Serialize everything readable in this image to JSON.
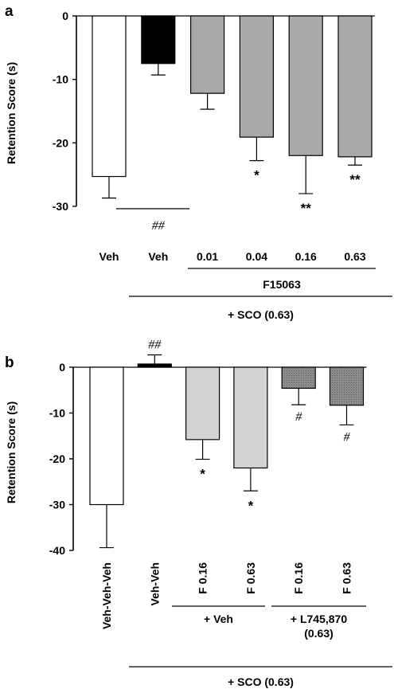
{
  "chart_data": [
    {
      "panel": "a",
      "type": "bar",
      "ylabel": "Retention Score (s)",
      "ylim": [
        -30,
        0
      ],
      "yticks": [
        0,
        -10,
        -20,
        -30
      ],
      "categories": [
        "Veh",
        "Veh",
        "0.01",
        "0.04",
        "0.16",
        "0.63"
      ],
      "values": [
        -25.3,
        -7.5,
        -12.2,
        -19.1,
        -22.0,
        -22.2
      ],
      "errors": [
        3.4,
        1.8,
        2.5,
        3.7,
        6.0,
        1.3
      ],
      "fills": [
        "#ffffff",
        "#000000",
        "#a9a9a9",
        "#a9a9a9",
        "#a9a9a9",
        "#a9a9a9"
      ],
      "sig_marks": [
        "",
        "##",
        "",
        "*",
        "**",
        "**"
      ],
      "group_labels": [
        {
          "text": "F15063",
          "from": 2,
          "to": 5
        },
        {
          "text": "+ SCO (0.63)",
          "from": 1,
          "to": 5
        }
      ],
      "grid": false
    },
    {
      "panel": "b",
      "type": "bar",
      "ylabel": "Retention Score (s)",
      "ylim": [
        -40,
        0
      ],
      "yticks": [
        0,
        -10,
        -20,
        -30,
        -40
      ],
      "categories": [
        "Veh-Veh-Veh",
        "Veh-Veh",
        "F 0.16",
        "F 0.63",
        "F 0.16",
        "F 0.63"
      ],
      "values": [
        -30.0,
        0.7,
        -15.8,
        -22.0,
        -4.6,
        -8.3
      ],
      "errors": [
        9.4,
        2.0,
        4.3,
        5.0,
        3.6,
        4.3
      ],
      "fills": [
        "#ffffff",
        "#000000",
        "#d3d3d3",
        "#d3d3d3",
        "#8c8c8c",
        "#8c8c8c"
      ],
      "sig_marks": [
        "",
        "##",
        "*",
        "*",
        "#",
        "#"
      ],
      "group_labels": [
        {
          "text": "+ Veh",
          "from": 2,
          "to": 3
        },
        {
          "text": "+ L745,870",
          "text2": "(0.63)",
          "from": 4,
          "to": 5
        },
        {
          "text": "+ SCO (0.63)",
          "from": 1,
          "to": 5
        }
      ],
      "grid": false
    }
  ],
  "panel_letters": [
    "a",
    "b"
  ]
}
